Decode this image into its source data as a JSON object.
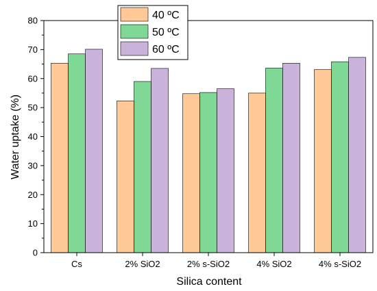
{
  "chart_data": {
    "type": "bar",
    "categories": [
      "Cs",
      "2% SiO2",
      "2% s-SiO2",
      "4% SiO2",
      "4% s-SiO2"
    ],
    "series": [
      {
        "name": "40 ºC",
        "values": [
          65.3,
          52.3,
          54.8,
          55.0,
          63.1
        ]
      },
      {
        "name": "50 ºC",
        "values": [
          68.5,
          59.0,
          55.2,
          63.6,
          65.8
        ]
      },
      {
        "name": "60 ºC",
        "values": [
          70.1,
          63.5,
          56.5,
          65.3,
          67.3
        ]
      }
    ],
    "xlabel": "Silica content",
    "ylabel": "Water uptake (%)",
    "ylim": [
      0,
      80
    ],
    "yticks": [
      0,
      10,
      20,
      30,
      40,
      50,
      60,
      70,
      80
    ],
    "grid": false,
    "legend_position": "top-left",
    "colors": [
      "#FFC896",
      "#7FD895",
      "#C9B3DA"
    ]
  }
}
